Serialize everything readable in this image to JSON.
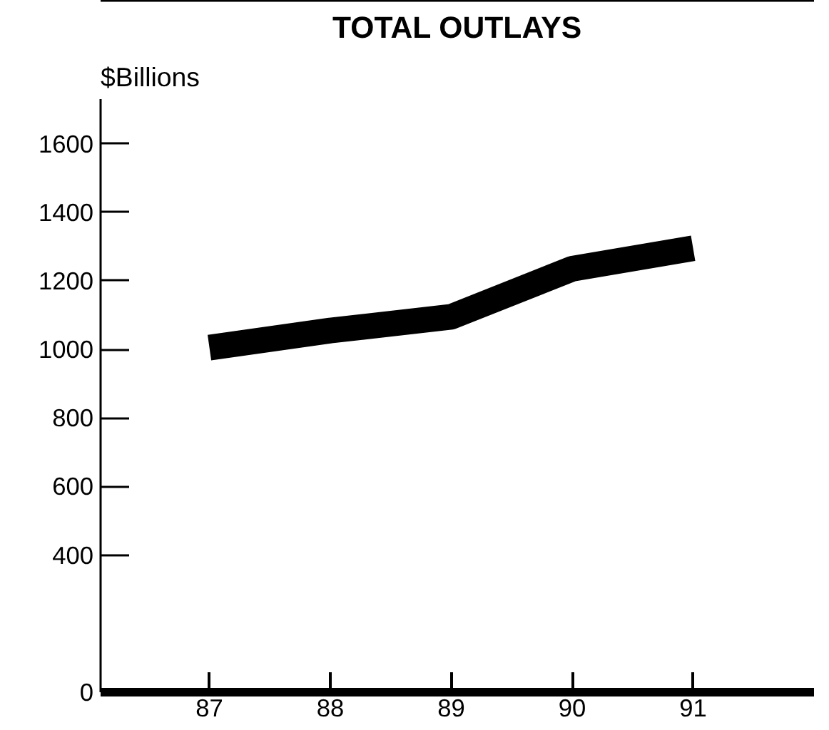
{
  "chart_data": {
    "type": "line",
    "title": "TOTAL OUTLAYS",
    "ylabel": "$Billions",
    "x": [
      87,
      88,
      89,
      90,
      91
    ],
    "series": [
      {
        "color": "#000000",
        "values": [
          1005,
          1055,
          1095,
          1235,
          1295
        ]
      }
    ],
    "xlim": [
      86.1,
      92
    ],
    "xticks": [
      87,
      88,
      89,
      90,
      91
    ],
    "ylim": [
      0,
      1730
    ],
    "yticks": [
      0,
      400,
      600,
      800,
      1000,
      1200,
      1400,
      1600
    ],
    "grid": false,
    "marker": "none",
    "line_style": "solid"
  }
}
